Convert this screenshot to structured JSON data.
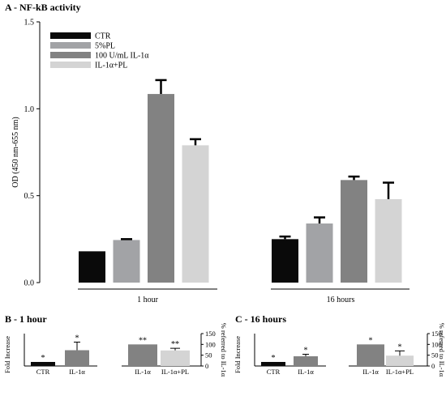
{
  "colors": {
    "CTR": "#0a0a0a",
    "PL": "#a2a3a6",
    "IL": "#828282",
    "ILPL": "#d4d4d4",
    "axis": "#000000"
  },
  "chart_data": [
    {
      "type": "bar",
      "title": "A - NF-kB activity",
      "ylabel": "OD (450 nm-655 nm)",
      "ylim": [
        0,
        1.5
      ],
      "yticks": [
        "0.0",
        "0.5",
        "1.0",
        "1.5"
      ],
      "groups": [
        "1 hour",
        "16 hours"
      ],
      "legend_position": "top-left",
      "series": [
        {
          "name": "CTR",
          "color": "#0a0a0a",
          "values": [
            0.18,
            0.25
          ],
          "errors": [
            0.0,
            0.015
          ]
        },
        {
          "name": "5%PL",
          "color": "#a2a3a6",
          "values": [
            0.245,
            0.34
          ],
          "errors": [
            0.005,
            0.035
          ]
        },
        {
          "name": "100 U/mL IL-1α",
          "color": "#828282",
          "values": [
            1.085,
            0.59
          ],
          "errors": [
            0.08,
            0.02
          ]
        },
        {
          "name": "IL-1α+PL",
          "color": "#d4d4d4",
          "values": [
            0.79,
            0.48
          ],
          "errors": [
            0.035,
            0.095
          ]
        }
      ]
    },
    {
      "type": "bar",
      "title": "B - 1 hour",
      "left": {
        "ylabel": "Fold Increase",
        "ylim": [
          0,
          8
        ],
        "categories": [
          "CTR",
          "IL-1α"
        ],
        "values": [
          1.0,
          3.9
        ],
        "errors": [
          0.0,
          2.0
        ],
        "stars": [
          "*",
          "*"
        ],
        "colors": [
          "#0a0a0a",
          "#828282"
        ]
      },
      "right": {
        "ylabel": "% referred to IL-1α",
        "ylim": [
          0,
          150
        ],
        "yticks": [
          "0",
          "50",
          "100",
          "150"
        ],
        "categories": [
          "IL-1α",
          "IL-1α+PL"
        ],
        "values": [
          100,
          72
        ],
        "errors": [
          0,
          10
        ],
        "stars": [
          "**",
          "**"
        ],
        "colors": [
          "#828282",
          "#d4d4d4"
        ]
      }
    },
    {
      "type": "bar",
      "title": "C - 16 hours",
      "left": {
        "ylabel": "Fold Increase",
        "ylim": [
          0,
          8
        ],
        "categories": [
          "CTR",
          "IL-1α"
        ],
        "values": [
          1.0,
          2.4
        ],
        "errors": [
          0.0,
          0.5
        ],
        "stars": [
          "*",
          "*"
        ],
        "colors": [
          "#0a0a0a",
          "#828282"
        ]
      },
      "right": {
        "ylabel": "% referred to IL-1α",
        "ylim": [
          0,
          150
        ],
        "yticks": [
          "0",
          "50",
          "100",
          "150"
        ],
        "categories": [
          "IL-1α",
          "IL-1α+PL"
        ],
        "values": [
          100,
          48
        ],
        "errors": [
          0,
          22
        ],
        "stars": [
          "*",
          "*"
        ],
        "colors": [
          "#828282",
          "#d4d4d4"
        ]
      }
    }
  ]
}
